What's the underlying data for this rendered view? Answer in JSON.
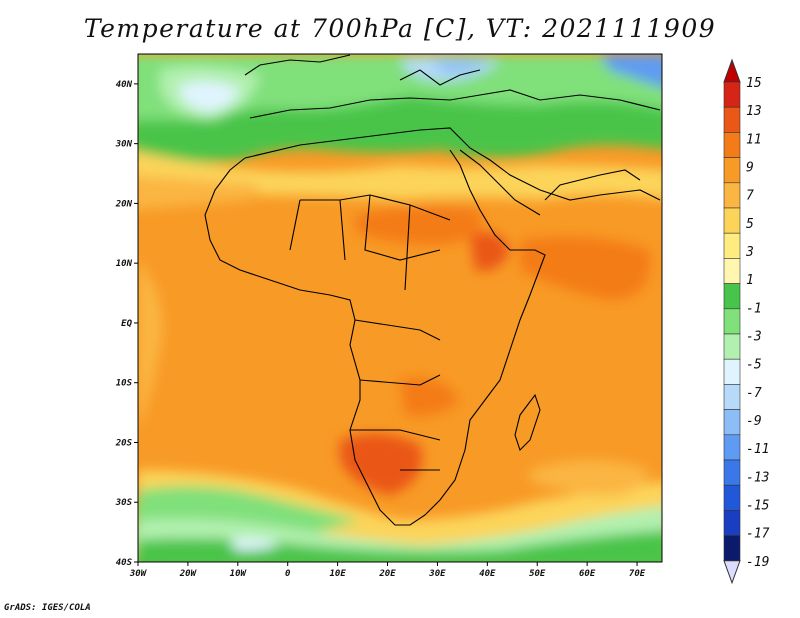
{
  "title": "Temperature at 700hPa [C], VT: 2021111909",
  "footer": "GrADS: IGES/COLA",
  "map": {
    "lon_range": [
      -30,
      75
    ],
    "lat_range": [
      -40,
      45
    ],
    "lon_ticks": [
      "30W",
      "20W",
      "10W",
      "0",
      "10E",
      "20E",
      "30E",
      "40E",
      "50E",
      "60E",
      "70E"
    ],
    "lat_ticks": [
      "40N",
      "30N",
      "20N",
      "10N",
      "EQ",
      "10S",
      "20S",
      "30S",
      "40S"
    ],
    "variable": "temperature",
    "units": "C",
    "level_hPa": 700
  },
  "colorbar": {
    "labels": [
      "15",
      "13",
      "11",
      "9",
      "7",
      "5",
      "3",
      "1",
      "-1",
      "-3",
      "-5",
      "-7",
      "-9",
      "-11",
      "-13",
      "-15",
      "-17",
      "-19"
    ],
    "colors": [
      "#fff7b0",
      "#ffec80",
      "#fcd45a",
      "#fbb542",
      "#f89a26",
      "#f47c18",
      "#ea5716",
      "#d62416"
    ],
    "cold_colors": [
      "#0b1a6b",
      "#1a3ec2",
      "#2157d9",
      "#3a78ea",
      "#5e9bf2",
      "#8cbdf7",
      "#b7daf9",
      "#e0f4ff",
      "#b2f0b0",
      "#80e07a",
      "#48c44a"
    ]
  }
}
